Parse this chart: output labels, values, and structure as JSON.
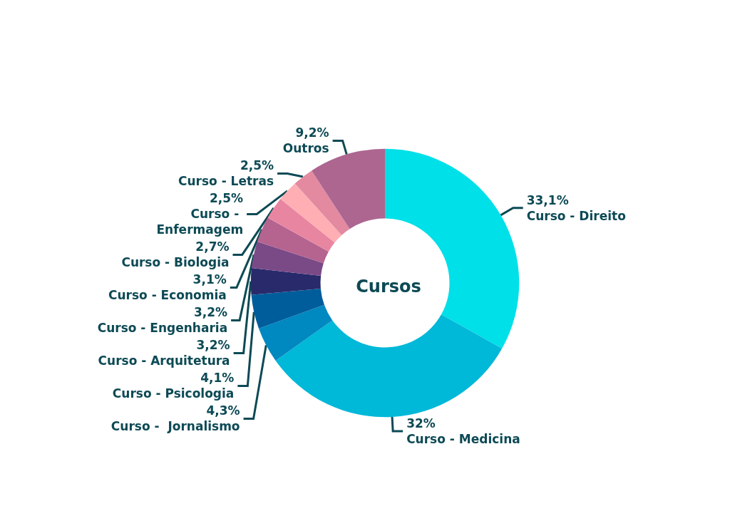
{
  "chart_data": {
    "type": "donut",
    "title": "Cursos",
    "categories": [
      "Curso - Direito",
      "Curso - Medicina",
      "Curso -  Jornalismo",
      "Curso - Psicologia",
      "Curso - Arquitetura",
      "Curso - Engenharia",
      "Curso - Economia",
      "Curso - Biologia",
      "Curso - Enfermagem",
      "Curso - Letras",
      "Outros"
    ],
    "values": [
      33.1,
      32,
      4.3,
      4.1,
      3.2,
      3.2,
      3.1,
      2.7,
      2.5,
      2.5,
      9.2
    ],
    "value_labels": [
      "33,1%",
      "32%",
      "4,3%",
      "4,1%",
      "3,2%",
      "3,2%",
      "3,1%",
      "2,7%",
      "2,5%",
      "2,5%",
      "9,2%"
    ],
    "colors": [
      "#00e0e8",
      "#00b8d8",
      "#0088c0",
      "#005d9b",
      "#282a6b",
      "#7a4a87",
      "#b5638f",
      "#e886a2",
      "#ffafb3",
      "#e38aa0",
      "#ad6690"
    ],
    "legend": false
  }
}
